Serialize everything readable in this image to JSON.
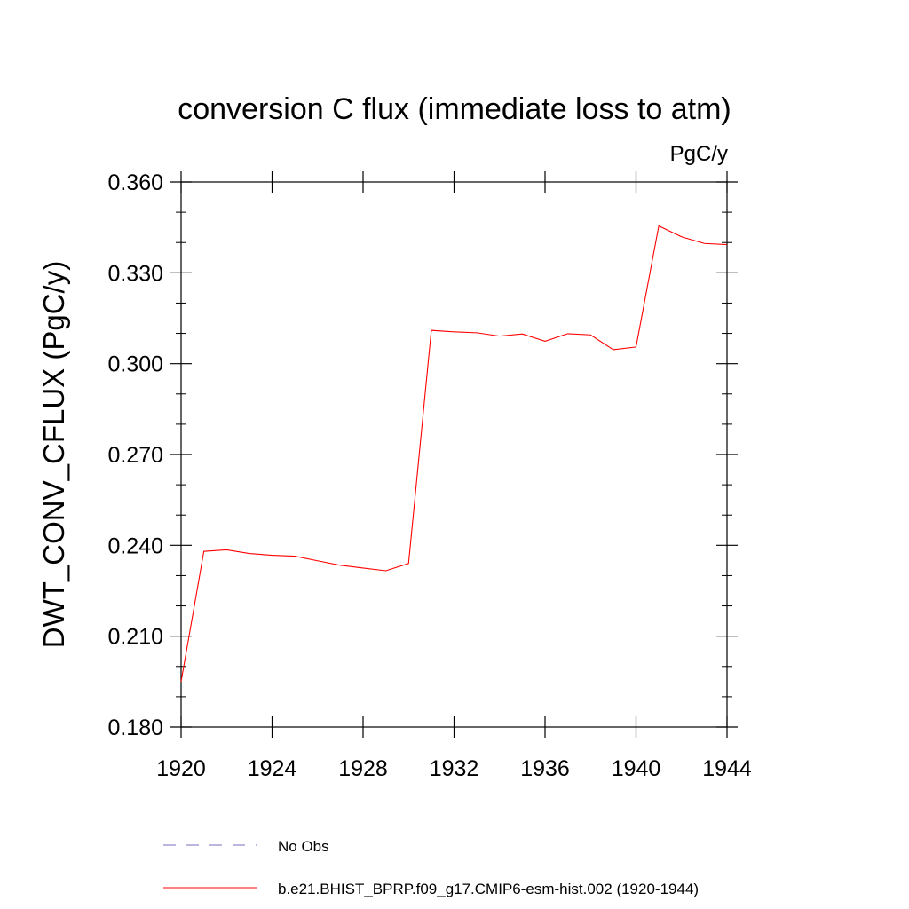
{
  "chart_data": {
    "type": "line",
    "title": "conversion C flux (immediate loss to atm)",
    "units": "PgC/y",
    "ylabel": "DWT_CONV_CFLUX  (PgC/y)",
    "xlabel": "",
    "xlim": [
      1920,
      1944
    ],
    "ylim": [
      0.18,
      0.36
    ],
    "xticks": [
      1920,
      1924,
      1928,
      1932,
      1936,
      1940,
      1944
    ],
    "xtick_labels": [
      "1920",
      "1924",
      "1928",
      "1932",
      "1936",
      "1940",
      "1944"
    ],
    "yticks": [
      0.18,
      0.21,
      0.24,
      0.27,
      0.3,
      0.33,
      0.36
    ],
    "ytick_labels": [
      "0.180",
      "0.210",
      "0.240",
      "0.270",
      "0.300",
      "0.330",
      "0.360"
    ],
    "grid": false,
    "legend_position": "bottom",
    "series": [
      {
        "name": "b.e21.BHIST_BPRP.f09_g17.CMIP6-esm-hist.002 (1920-1944)",
        "color": "#ff0000",
        "style": "solid",
        "x": [
          1920,
          1921,
          1922,
          1923,
          1924,
          1925,
          1926,
          1927,
          1928,
          1929,
          1930,
          1931,
          1932,
          1933,
          1934,
          1935,
          1936,
          1937,
          1938,
          1939,
          1940,
          1941,
          1942,
          1943,
          1944
        ],
        "y": [
          0.195,
          0.238,
          0.2385,
          0.2373,
          0.2367,
          0.2364,
          0.2349,
          0.2334,
          0.2325,
          0.2316,
          0.234,
          0.311,
          0.3105,
          0.3102,
          0.3091,
          0.3098,
          0.3074,
          0.3099,
          0.3095,
          0.3046,
          0.3055,
          0.3455,
          0.3419,
          0.3397,
          0.3393
        ]
      }
    ],
    "legend": [
      {
        "label": "No Obs",
        "color": "#7b6fc0",
        "style": "dashed"
      },
      {
        "label": "b.e21.BHIST_BPRP.f09_g17.CMIP6-esm-hist.002 (1920-1944)",
        "color": "#ff0000",
        "style": "solid"
      }
    ]
  }
}
